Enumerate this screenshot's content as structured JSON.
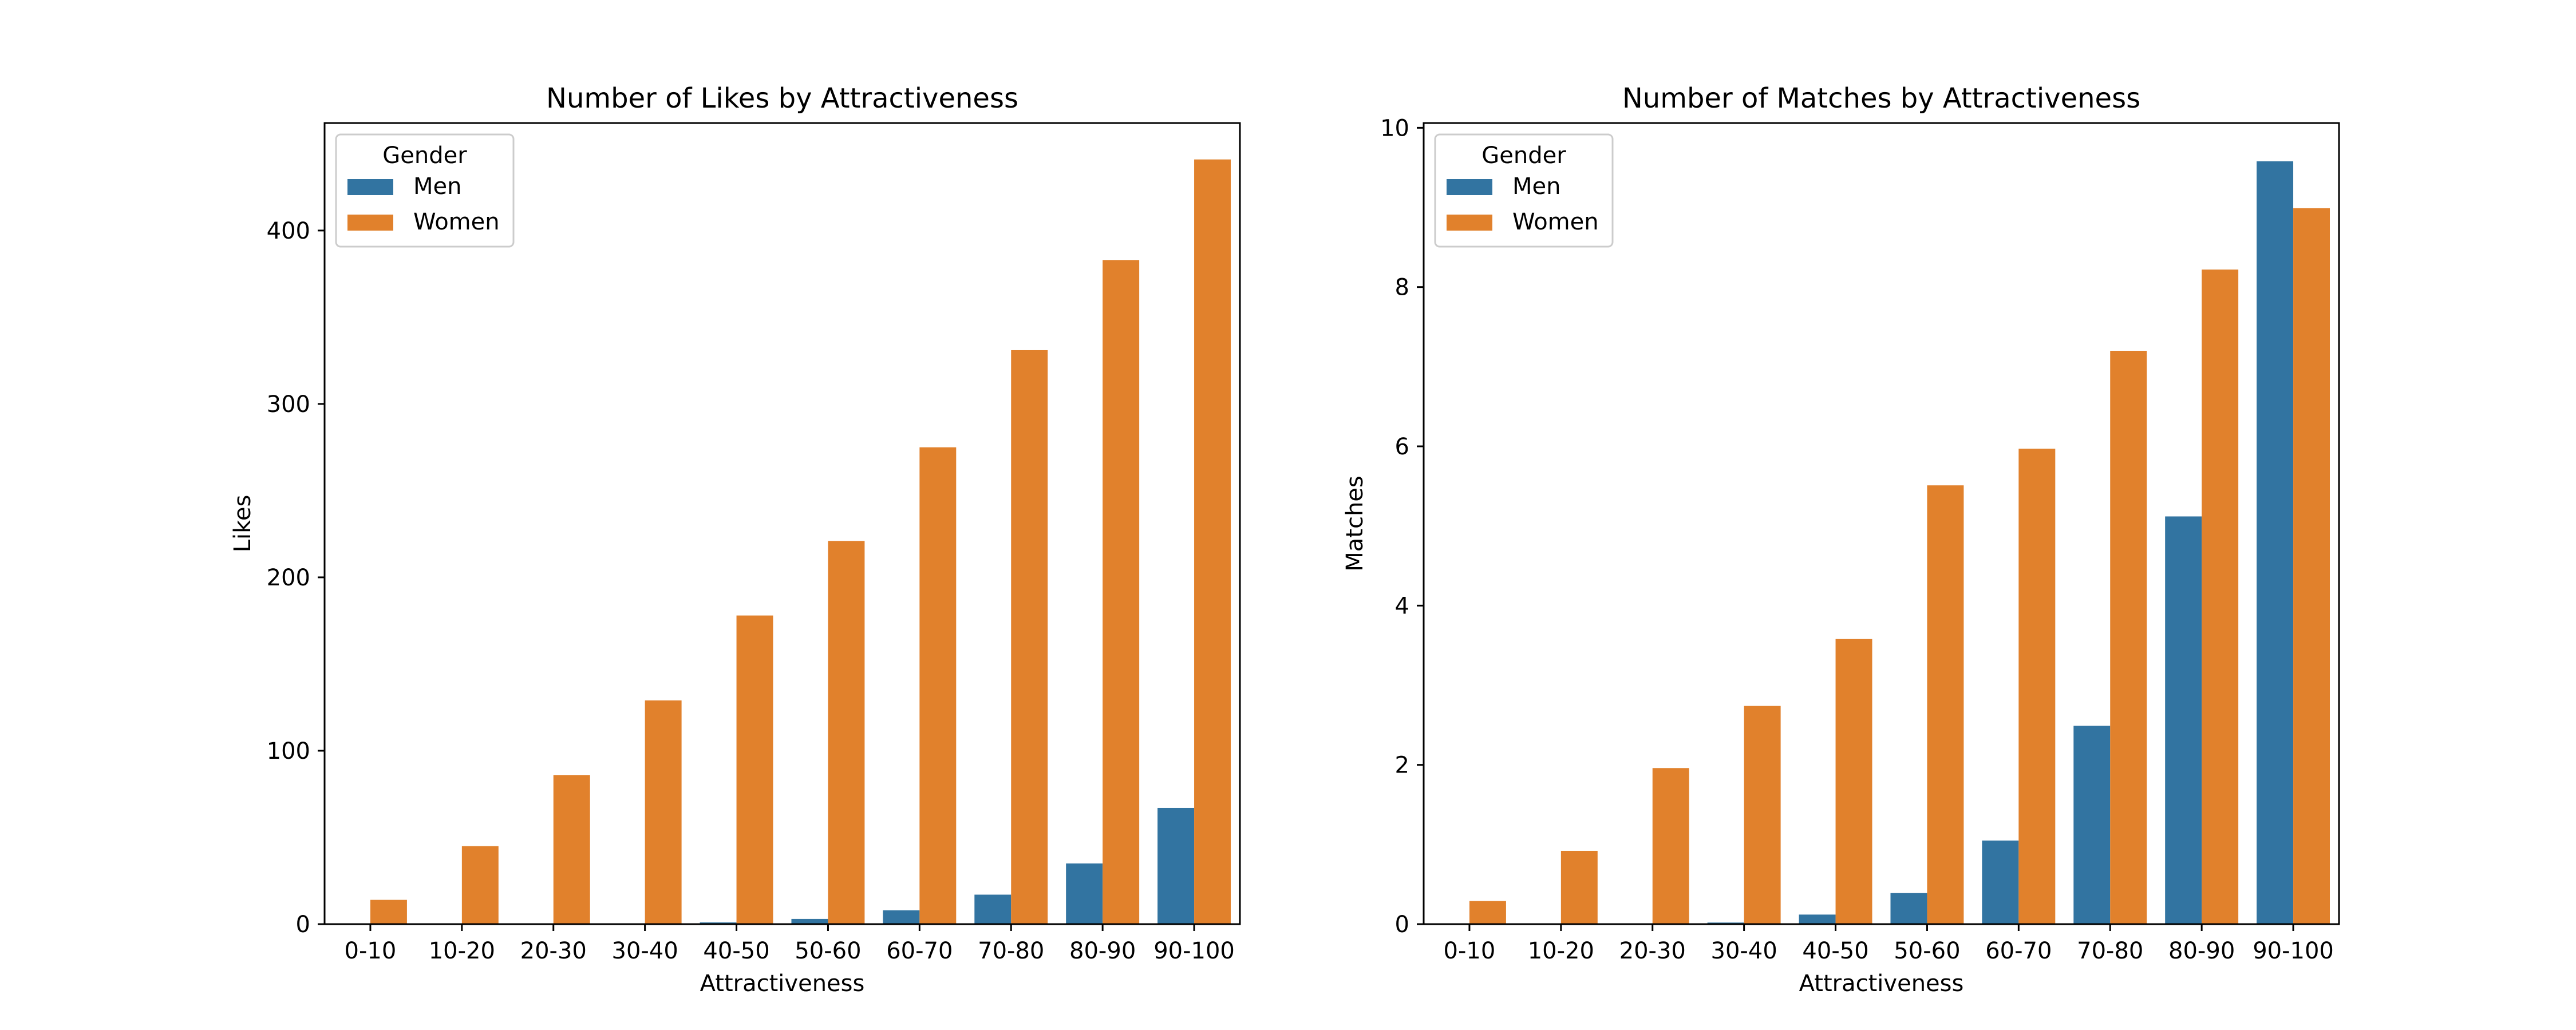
{
  "colors": {
    "men": "#3274a1",
    "women": "#e1812c"
  },
  "chart_data": [
    {
      "type": "bar",
      "title": "Number of Likes by Attractiveness",
      "xlabel": "Attractiveness",
      "ylabel": "Likes",
      "categories": [
        "0-10",
        "10-20",
        "20-30",
        "30-40",
        "40-50",
        "50-60",
        "60-70",
        "70-80",
        "80-90",
        "90-100"
      ],
      "ylim": [
        0,
        462
      ],
      "yticks": [
        0,
        100,
        200,
        300,
        400
      ],
      "legend": {
        "title": "Gender",
        "placement": "top-left"
      },
      "series": [
        {
          "name": "Men",
          "values": [
            0,
            0,
            0,
            0,
            1,
            3,
            8,
            17,
            35,
            67
          ]
        },
        {
          "name": "Women",
          "values": [
            14,
            45,
            86,
            129,
            178,
            221,
            275,
            331,
            383,
            441
          ]
        }
      ],
      "grid": false
    },
    {
      "type": "bar",
      "title": "Number of Matches by Attractiveness",
      "xlabel": "Attractiveness",
      "ylabel": "Matches",
      "categories": [
        "0-10",
        "10-20",
        "20-30",
        "30-40",
        "40-50",
        "50-60",
        "60-70",
        "70-80",
        "80-90",
        "90-100"
      ],
      "ylim": [
        0,
        10.06
      ],
      "yticks": [
        0,
        2,
        4,
        6,
        8,
        10
      ],
      "legend": {
        "title": "Gender",
        "placement": "top-left"
      },
      "series": [
        {
          "name": "Men",
          "values": [
            0,
            0,
            0,
            0.02,
            0.12,
            0.39,
            1.05,
            2.49,
            5.12,
            9.58
          ]
        },
        {
          "name": "Women",
          "values": [
            0.29,
            0.92,
            1.96,
            2.74,
            3.58,
            5.51,
            5.97,
            7.2,
            8.22,
            8.99
          ]
        }
      ],
      "grid": false
    }
  ]
}
